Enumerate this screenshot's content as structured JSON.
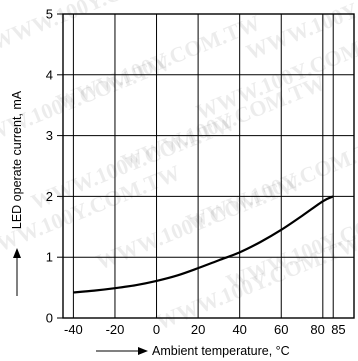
{
  "chart_data": {
    "type": "line",
    "xlabel": "Ambient temperature, °C",
    "ylabel": "LED operate current, mA",
    "xlim": [
      -45,
      95
    ],
    "ylim": [
      0,
      5
    ],
    "x_ticks": [
      -40,
      -20,
      0,
      20,
      40,
      60,
      80,
      85
    ],
    "y_ticks": [
      0,
      1,
      2,
      3,
      4,
      5
    ],
    "grid": true,
    "series": [
      {
        "x": [
          -40,
          -30,
          -20,
          -10,
          0,
          10,
          20,
          30,
          40,
          50,
          60,
          70,
          80,
          85
        ],
        "y": [
          0.42,
          0.45,
          0.49,
          0.54,
          0.61,
          0.7,
          0.82,
          0.95,
          1.08,
          1.25,
          1.45,
          1.68,
          1.92,
          2.0
        ],
        "color": "#000000"
      }
    ],
    "watermark": "WWW.100Y.COM.TW"
  }
}
